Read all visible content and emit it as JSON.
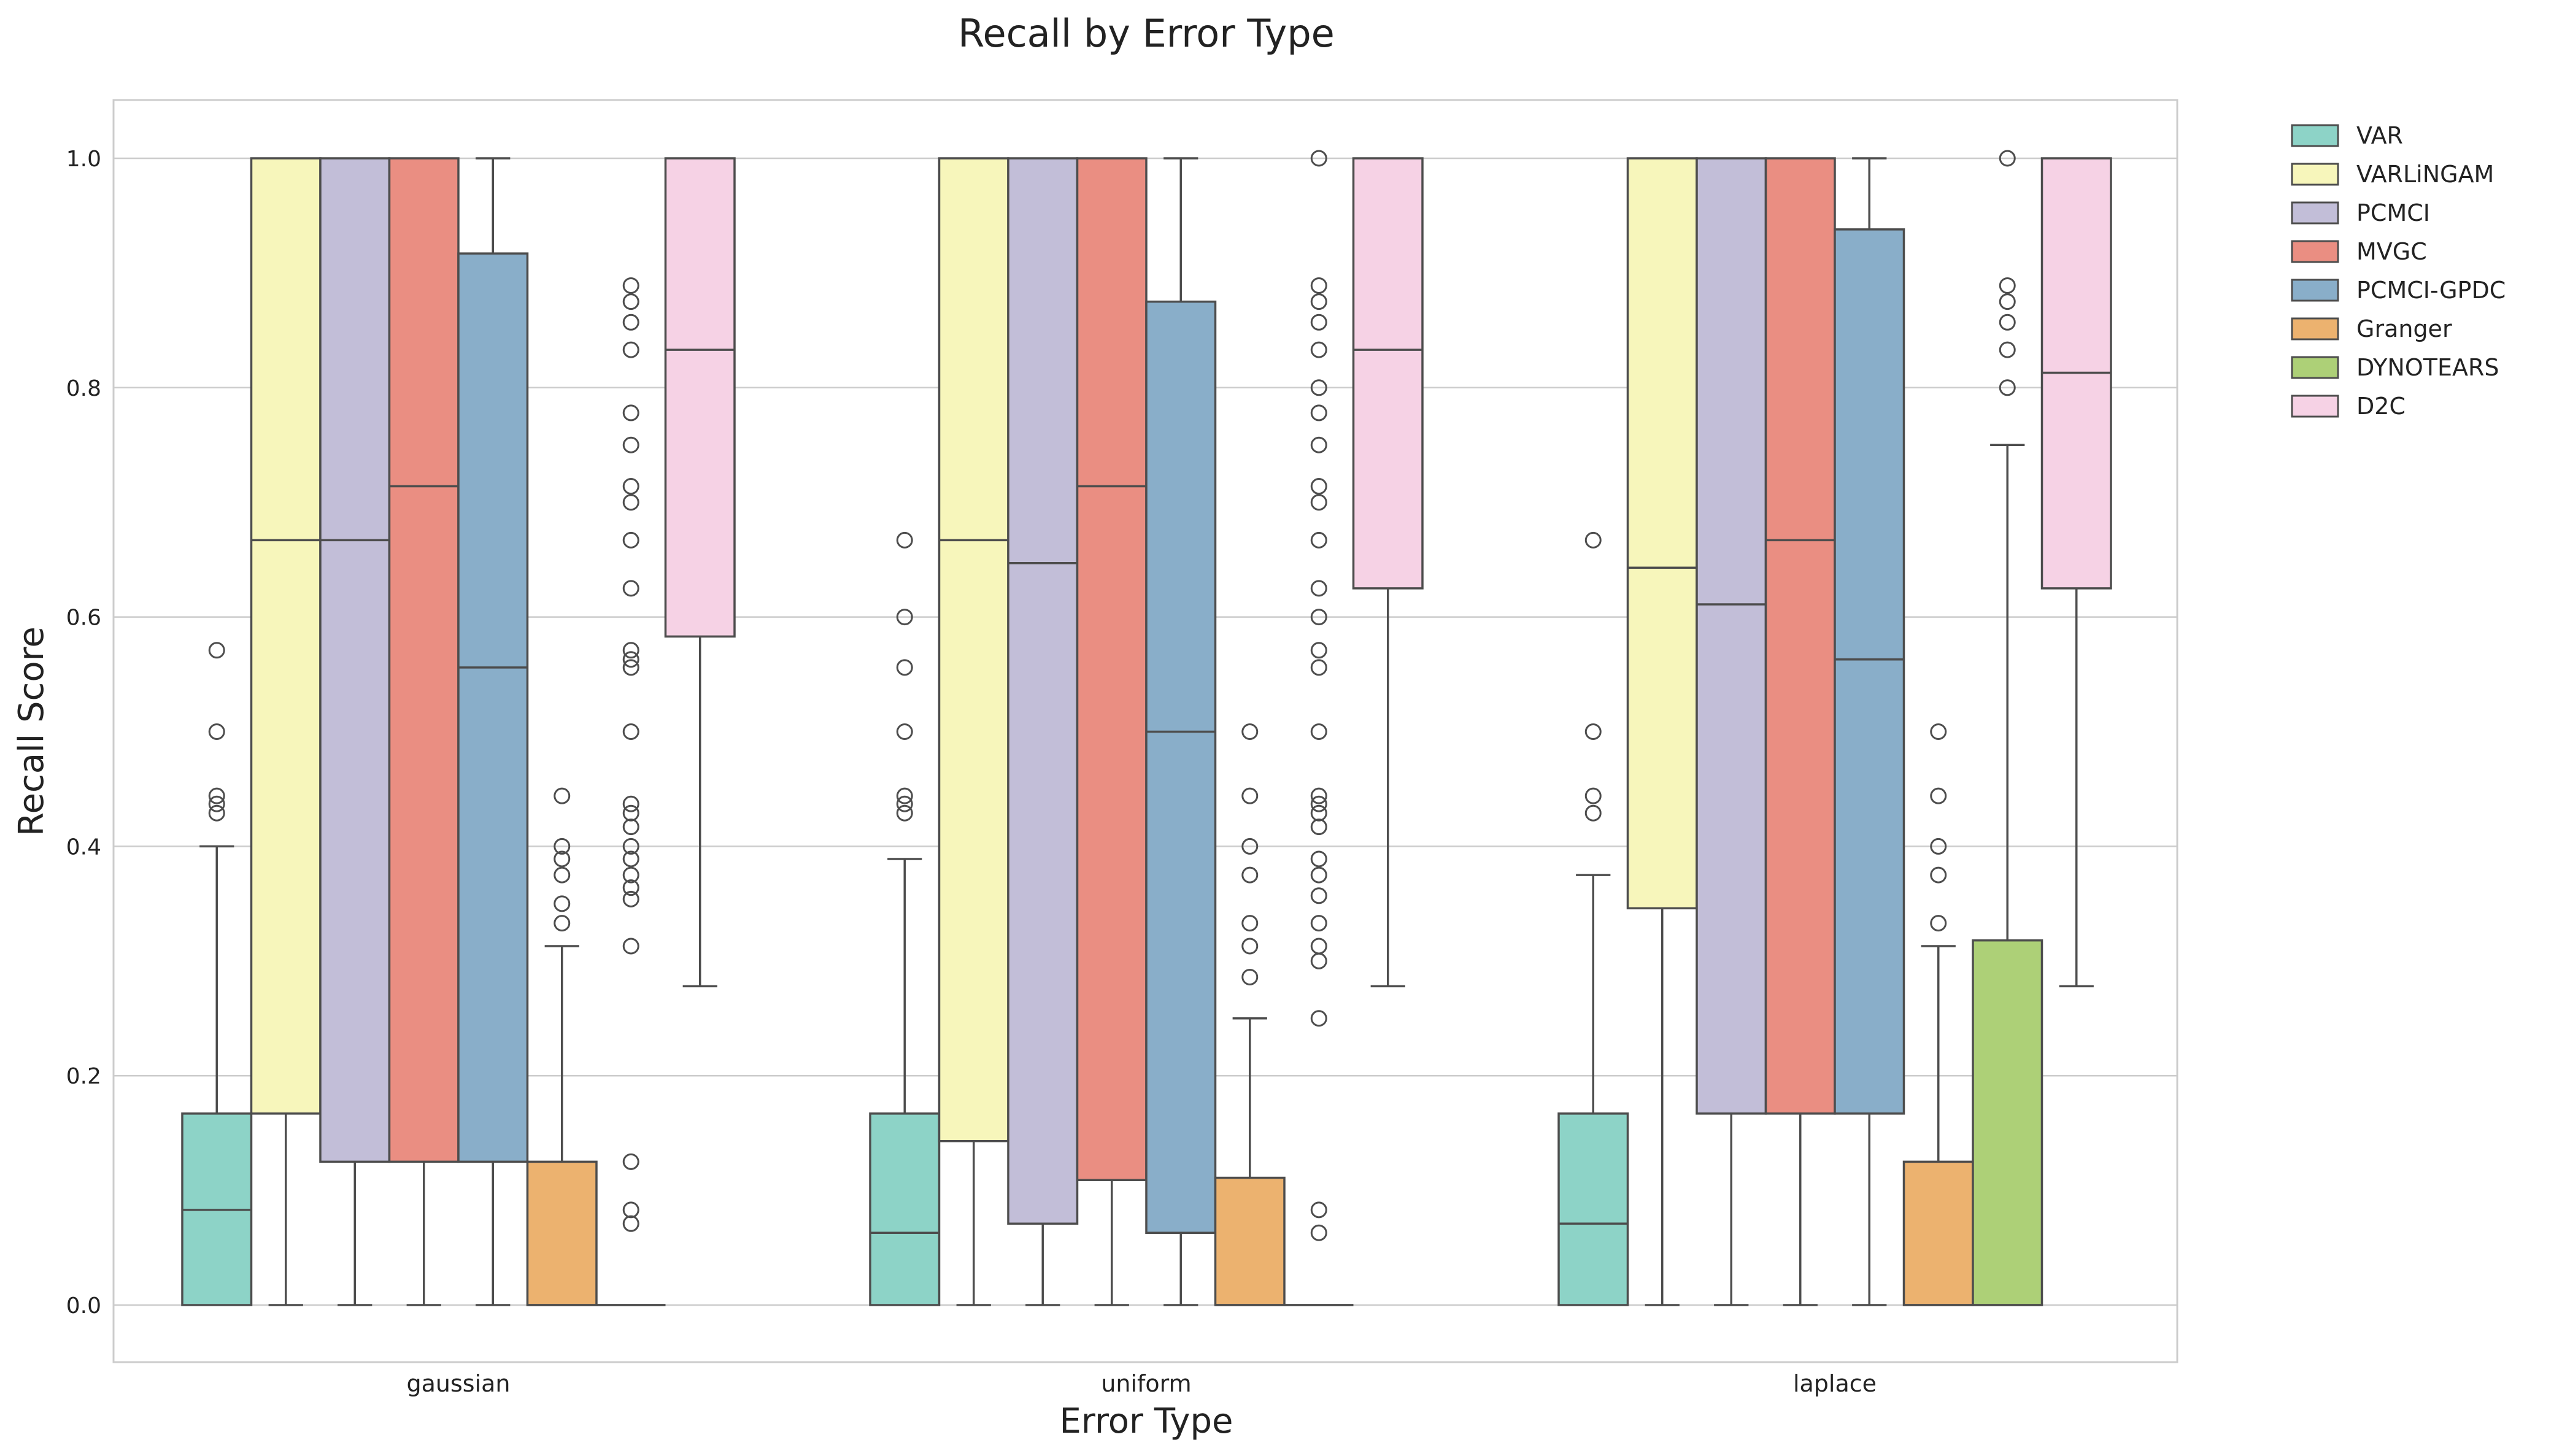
{
  "chart_data": {
    "type": "box",
    "title": "Recall by Error Type",
    "xlabel": "Error Type",
    "ylabel": "Recall Score",
    "ylim": [
      -0.05,
      1.05
    ],
    "yticks": [
      0.0,
      0.2,
      0.4,
      0.6,
      0.8,
      1.0
    ],
    "ytick_labels": [
      "0.0",
      "0.2",
      "0.4",
      "0.6",
      "0.8",
      "1.0"
    ],
    "grid": "horizontal",
    "legend_position": "outside-top-right",
    "categories": [
      "gaussian",
      "uniform",
      "laplace"
    ],
    "series": [
      {
        "name": "VAR",
        "color": "#8dd3c7",
        "boxes": [
          {
            "q1": 0.0,
            "median": 0.083,
            "q3": 0.167,
            "whisker_low": 0.0,
            "whisker_high": 0.4,
            "outliers": [
              0.429,
              0.437,
              0.444,
              0.5,
              0.571
            ]
          },
          {
            "q1": 0.0,
            "median": 0.063,
            "q3": 0.167,
            "whisker_low": 0.0,
            "whisker_high": 0.389,
            "outliers": [
              0.429,
              0.437,
              0.444,
              0.5,
              0.556,
              0.6,
              0.667
            ]
          },
          {
            "q1": 0.0,
            "median": 0.071,
            "q3": 0.167,
            "whisker_low": 0.0,
            "whisker_high": 0.375,
            "outliers": [
              0.429,
              0.444,
              0.5,
              0.667
            ]
          }
        ]
      },
      {
        "name": "VARLiNGAM",
        "color": "#f7f6bb",
        "boxes": [
          {
            "q1": 0.167,
            "median": 0.667,
            "q3": 1.0,
            "whisker_low": 0.0,
            "whisker_high": 1.0,
            "outliers": []
          },
          {
            "q1": 0.143,
            "median": 0.667,
            "q3": 1.0,
            "whisker_low": 0.0,
            "whisker_high": 1.0,
            "outliers": []
          },
          {
            "q1": 0.346,
            "median": 0.643,
            "q3": 1.0,
            "whisker_low": 0.0,
            "whisker_high": 1.0,
            "outliers": []
          }
        ]
      },
      {
        "name": "PCMCI",
        "color": "#c2bed8",
        "boxes": [
          {
            "q1": 0.125,
            "median": 0.667,
            "q3": 1.0,
            "whisker_low": 0.0,
            "whisker_high": 1.0,
            "outliers": []
          },
          {
            "q1": 0.071,
            "median": 0.647,
            "q3": 1.0,
            "whisker_low": 0.0,
            "whisker_high": 1.0,
            "outliers": []
          },
          {
            "q1": 0.167,
            "median": 0.611,
            "q3": 1.0,
            "whisker_low": 0.0,
            "whisker_high": 1.0,
            "outliers": []
          }
        ]
      },
      {
        "name": "MVGC",
        "color": "#ea8e82",
        "boxes": [
          {
            "q1": 0.125,
            "median": 0.714,
            "q3": 1.0,
            "whisker_low": 0.0,
            "whisker_high": 1.0,
            "outliers": []
          },
          {
            "q1": 0.109,
            "median": 0.714,
            "q3": 1.0,
            "whisker_low": 0.0,
            "whisker_high": 1.0,
            "outliers": []
          },
          {
            "q1": 0.167,
            "median": 0.667,
            "q3": 1.0,
            "whisker_low": 0.0,
            "whisker_high": 1.0,
            "outliers": []
          }
        ]
      },
      {
        "name": "PCMCI-GPDC",
        "color": "#89aec9",
        "boxes": [
          {
            "q1": 0.125,
            "median": 0.556,
            "q3": 0.917,
            "whisker_low": 0.0,
            "whisker_high": 1.0,
            "outliers": []
          },
          {
            "q1": 0.063,
            "median": 0.5,
            "q3": 0.875,
            "whisker_low": 0.0,
            "whisker_high": 1.0,
            "outliers": []
          },
          {
            "q1": 0.167,
            "median": 0.563,
            "q3": 0.938,
            "whisker_low": 0.0,
            "whisker_high": 1.0,
            "outliers": []
          }
        ]
      },
      {
        "name": "Granger",
        "color": "#ecb26f",
        "boxes": [
          {
            "q1": 0.0,
            "median": 0.0,
            "q3": 0.125,
            "whisker_low": 0.0,
            "whisker_high": 0.313,
            "outliers": [
              0.333,
              0.35,
              0.375,
              0.389,
              0.4,
              0.444
            ]
          },
          {
            "q1": 0.0,
            "median": 0.0,
            "q3": 0.111,
            "whisker_low": 0.0,
            "whisker_high": 0.25,
            "outliers": [
              0.286,
              0.313,
              0.333,
              0.375,
              0.4,
              0.444,
              0.5
            ]
          },
          {
            "q1": 0.0,
            "median": 0.0,
            "q3": 0.125,
            "whisker_low": 0.0,
            "whisker_high": 0.313,
            "outliers": [
              0.333,
              0.375,
              0.4,
              0.444,
              0.5
            ]
          }
        ]
      },
      {
        "name": "DYNOTEARS",
        "color": "#add077",
        "boxes": [
          {
            "q1": 0.0,
            "median": 0.0,
            "q3": 0.0,
            "whisker_low": 0.0,
            "whisker_high": 0.0,
            "outliers": [
              0.071,
              0.083,
              0.125,
              0.313,
              0.354,
              0.364,
              0.375,
              0.389,
              0.4,
              0.417,
              0.429,
              0.437,
              0.5,
              0.556,
              0.563,
              0.571,
              0.625,
              0.667,
              0.7,
              0.714,
              0.75,
              0.778,
              0.833,
              0.857,
              0.875,
              0.889
            ]
          },
          {
            "q1": 0.0,
            "median": 0.0,
            "q3": 0.0,
            "whisker_low": 0.0,
            "whisker_high": 0.0,
            "outliers": [
              0.063,
              0.083,
              0.25,
              0.3,
              0.313,
              0.333,
              0.357,
              0.375,
              0.389,
              0.417,
              0.429,
              0.437,
              0.444,
              0.5,
              0.556,
              0.571,
              0.6,
              0.625,
              0.667,
              0.7,
              0.714,
              0.75,
              0.778,
              0.8,
              0.833,
              0.857,
              0.875,
              0.889,
              1.0
            ]
          },
          {
            "q1": 0.0,
            "median": 0.0,
            "q3": 0.318,
            "whisker_low": 0.0,
            "whisker_high": 0.75,
            "outliers": [
              0.8,
              0.833,
              0.857,
              0.875,
              0.889,
              1.0
            ]
          }
        ]
      },
      {
        "name": "D2C",
        "color": "#f6d2e5",
        "boxes": [
          {
            "q1": 0.583,
            "median": 0.833,
            "q3": 1.0,
            "whisker_low": 0.278,
            "whisker_high": 1.0,
            "outliers": []
          },
          {
            "q1": 0.625,
            "median": 0.833,
            "q3": 1.0,
            "whisker_low": 0.278,
            "whisker_high": 1.0,
            "outliers": []
          },
          {
            "q1": 0.625,
            "median": 0.813,
            "q3": 1.0,
            "whisker_low": 0.278,
            "whisker_high": 1.0,
            "outliers": []
          }
        ]
      }
    ]
  }
}
